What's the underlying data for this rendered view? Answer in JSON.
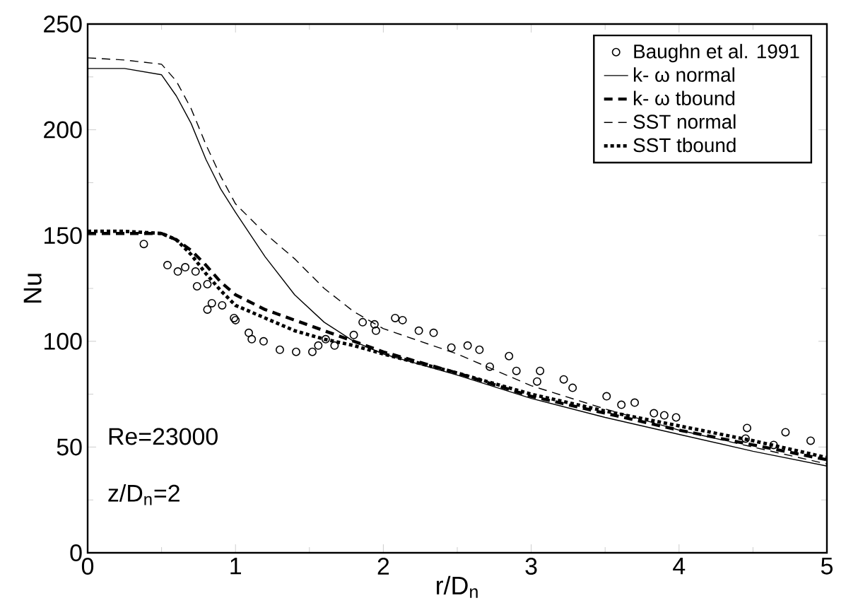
{
  "chart_data": {
    "type": "line",
    "xlabel": "r/D$_{n}$",
    "ylabel": "Nu",
    "xlim": [
      0,
      5
    ],
    "xticks": [
      0,
      1,
      2,
      3,
      4,
      5
    ],
    "ylim": [
      0,
      250
    ],
    "yticks": [
      0,
      50,
      100,
      150,
      200,
      250
    ],
    "legend": "top right",
    "grid": false,
    "annotations": [
      "Re=23000",
      "z/D$_{n}$=2"
    ],
    "series": [
      {
        "name": "Baughn et al. 1991",
        "type": "scatter",
        "marker": "circle",
        "color": "#000000",
        "x": [
          0.38,
          0.54,
          0.61,
          0.66,
          0.73,
          0.74,
          0.81,
          0.81,
          0.84,
          0.91,
          0.99,
          1.0,
          1.09,
          1.11,
          1.19,
          1.3,
          1.41,
          1.52,
          1.56,
          1.61,
          1.67,
          1.8,
          1.86,
          1.94,
          1.95,
          2.08,
          2.13,
          2.24,
          2.34,
          2.46,
          2.57,
          2.65,
          2.72,
          2.85,
          2.9,
          3.04,
          3.06,
          3.22,
          3.28,
          3.51,
          3.61,
          3.7,
          3.83,
          3.9,
          3.98,
          4.45,
          4.46,
          4.64,
          4.72,
          4.89
        ],
        "values": [
          146,
          136,
          133,
          135,
          133,
          126,
          127,
          115,
          118,
          117,
          111,
          110,
          104,
          101,
          100,
          96,
          95,
          95,
          98,
          101,
          98,
          103,
          109,
          108,
          105,
          111,
          110,
          105,
          104,
          97,
          98,
          96,
          88,
          93,
          86,
          81,
          86,
          82,
          78,
          74,
          70,
          71,
          66,
          65,
          64,
          54,
          59,
          51,
          57,
          53
        ]
      },
      {
        "name": "k- ω normal",
        "line_style": "solid",
        "color": "#000000",
        "x": [
          0,
          0.25,
          0.5,
          0.6,
          0.7,
          0.8,
          0.9,
          1.0,
          1.2,
          1.4,
          1.6,
          1.8,
          2.0,
          2.5,
          3.0,
          3.5,
          4.0,
          4.5,
          5.0
        ],
        "values": [
          229,
          229,
          226,
          216,
          203,
          186,
          172,
          161,
          140,
          122,
          109,
          100,
          94,
          84,
          73,
          64,
          56,
          48,
          41
        ]
      },
      {
        "name": "k- ω tbound",
        "line_style": "dashed",
        "color": "#000000",
        "x": [
          0,
          0.25,
          0.5,
          0.6,
          0.7,
          0.8,
          0.9,
          1.0,
          1.2,
          1.4,
          1.6,
          1.8,
          2.0,
          2.5,
          3.0,
          3.5,
          4.0,
          4.5,
          5.0
        ],
        "values": [
          151,
          151,
          151,
          148,
          143,
          136,
          128,
          122,
          115,
          110,
          105,
          100,
          95,
          85,
          74,
          66,
          58,
          51,
          44
        ]
      },
      {
        "name": "SST normal",
        "line_style": "dashed",
        "color": "#000000",
        "x": [
          0,
          0.25,
          0.5,
          0.6,
          0.7,
          0.8,
          0.9,
          1.0,
          1.2,
          1.4,
          1.6,
          1.8,
          2.0,
          2.5,
          3.0,
          3.5,
          4.0,
          4.5,
          5.0
        ],
        "values": [
          234,
          233,
          231,
          223,
          210,
          193,
          178,
          165,
          151,
          139,
          125,
          114,
          106,
          94,
          79,
          68,
          58,
          50,
          42
        ]
      },
      {
        "name": "SST tbound",
        "line_style": "dotted",
        "color": "#000000",
        "x": [
          0,
          0.25,
          0.5,
          0.6,
          0.7,
          0.8,
          0.9,
          1.0,
          1.2,
          1.4,
          1.6,
          1.8,
          2.0,
          2.5,
          3.0,
          3.5,
          4.0,
          4.5,
          5.0
        ],
        "values": [
          152,
          152,
          151,
          148,
          141,
          132,
          124,
          117,
          111,
          105,
          101,
          98,
          94,
          85,
          75,
          67,
          60,
          53,
          45
        ]
      }
    ]
  }
}
